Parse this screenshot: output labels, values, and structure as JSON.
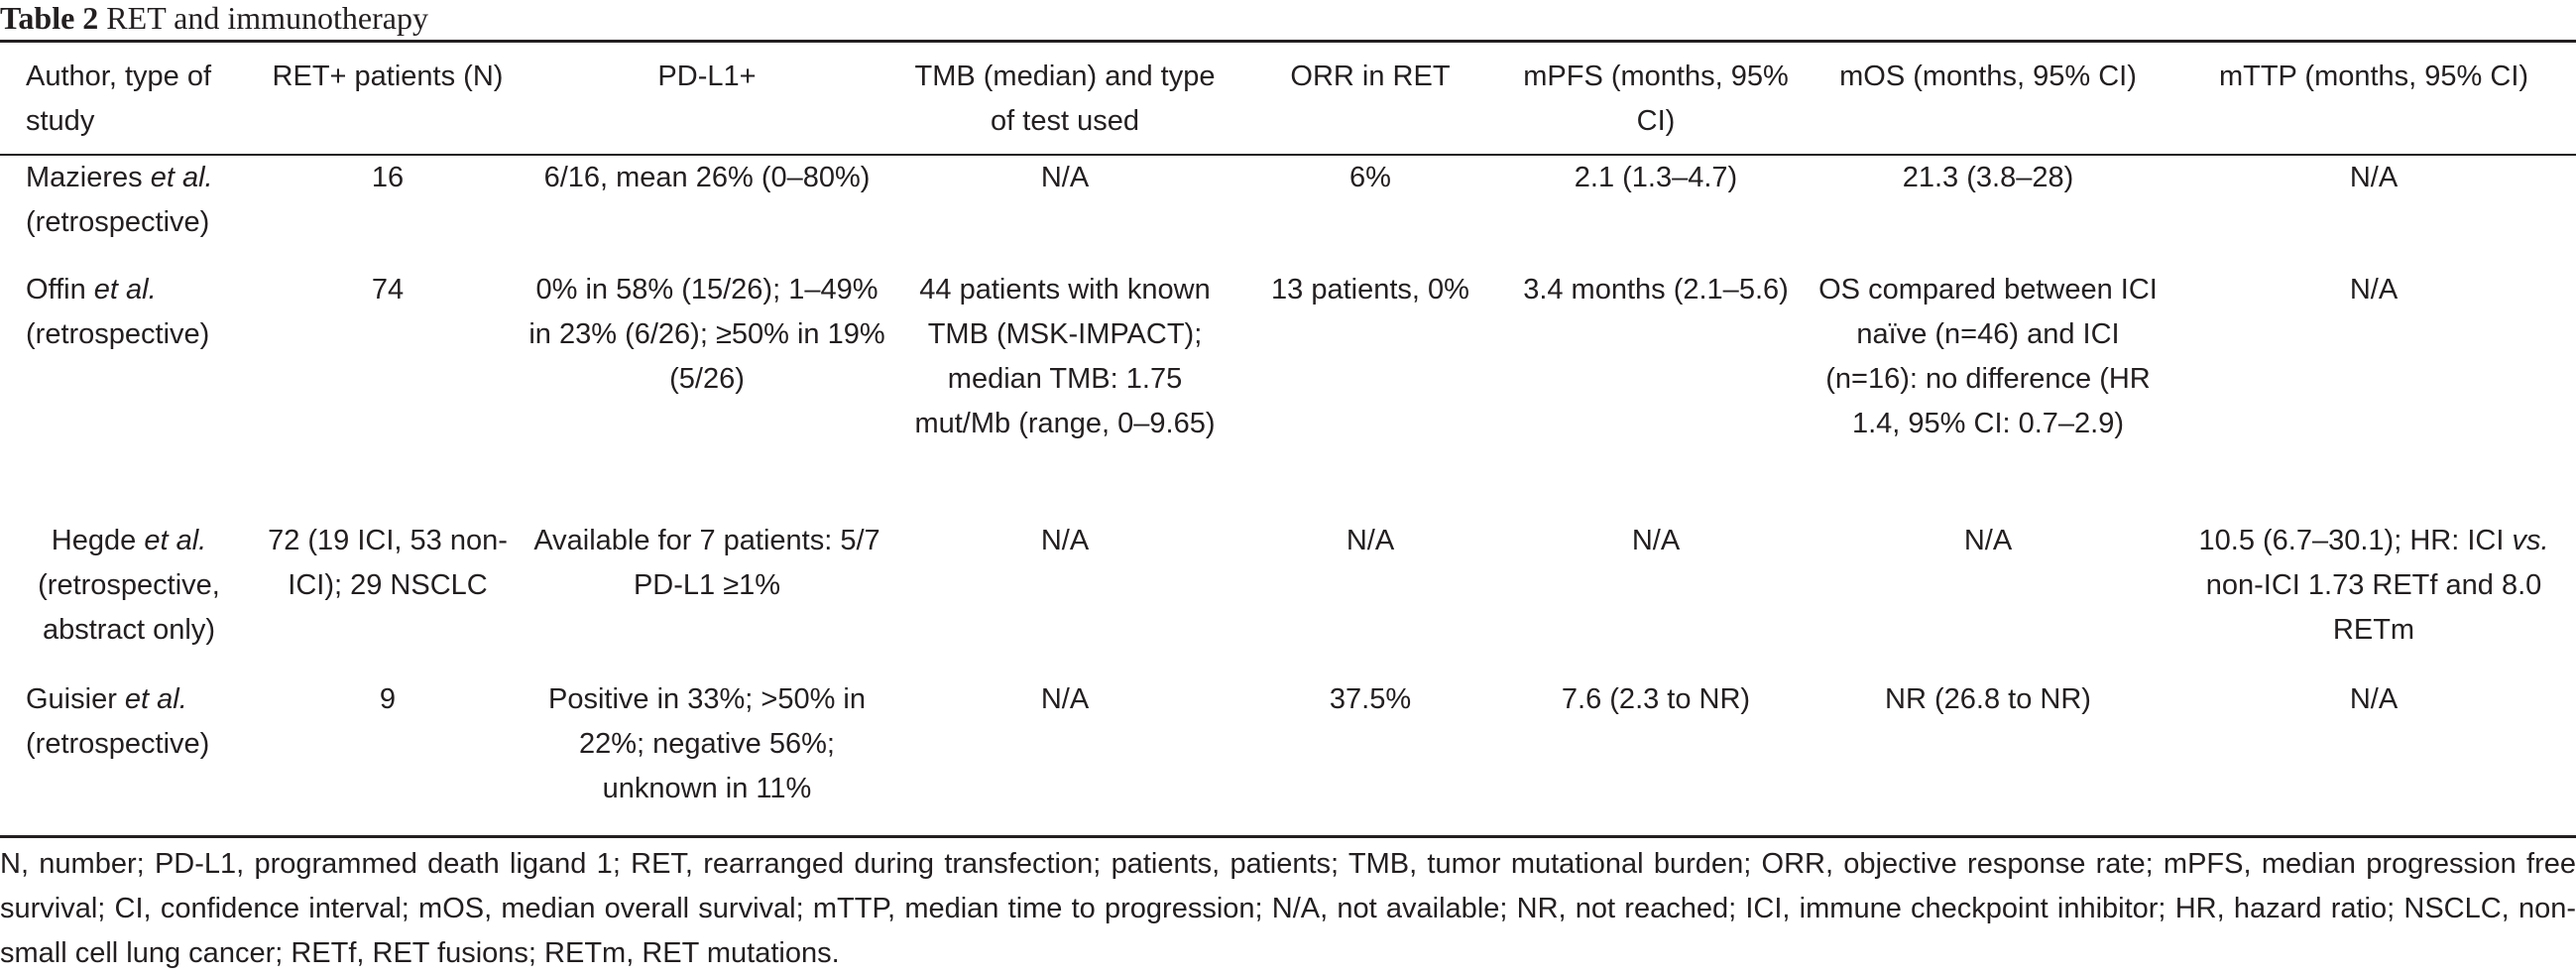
{
  "caption": {
    "label": "Table 2",
    "title": " RET and immunotherapy"
  },
  "headers": [
    "Author, type of study",
    "RET+ patients (N)",
    "PD-L1+",
    "TMB (median) and type of test used",
    "ORR in RET",
    "mPFS (months, 95% CI)",
    "mOS (months, 95% CI)",
    "mTTP (months, 95% CI)"
  ],
  "rows": [
    {
      "author": "Mazieres",
      "etal": "et al.",
      "type": "(retrospective)",
      "patients": "16",
      "pdl1": "6/16, mean 26% (0–80%)",
      "tmb": "N/A",
      "orr": "6%",
      "mpfs": "2.1 (1.3–4.7)",
      "mos": "21.3 (3.8–28)",
      "mttp": "N/A"
    },
    {
      "author": "Offin",
      "etal": "et al.",
      "type": "(retrospective)",
      "patients": "74",
      "pdl1": "0% in 58% (15/26); 1–49% in 23% (6/26); ≥50% in 19% (5/26)",
      "tmb": "44 patients with known TMB (MSK-IMPACT); median TMB: 1.75 mut/Mb (range, 0–9.65)",
      "orr": "13 patients, 0%",
      "mpfs": "3.4 months (2.1–5.6)",
      "mos": "OS compared between ICI naïve (n=46) and ICI (n=16): no difference (HR 1.4, 95% CI: 0.7–2.9)",
      "mttp": "N/A"
    },
    {
      "author": "Hegde",
      "etal": "et al.",
      "type": "(retrospective, abstract only)",
      "patients": "72 (19 ICI, 53 non-ICI); 29 NSCLC",
      "pdl1": "Available for 7 patients: 5/7 PD-L1 ≥1%",
      "tmb": "N/A",
      "orr": "N/A",
      "mpfs": "N/A",
      "mos": "N/A",
      "mttp_pre": "10.5 (6.7–30.1); HR: ICI ",
      "mttp_vs": "vs.",
      "mttp_post": " non-ICI 1.73 RETf and 8.0 RETm"
    },
    {
      "author": "Guisier",
      "etal": "et al.",
      "type": "(retrospective)",
      "patients": "9",
      "pdl1": "Positive in 33%; >50% in 22%; negative 56%; unknown in 11%",
      "tmb": "N/A",
      "orr": "37.5%",
      "mpfs": "7.6 (2.3 to NR)",
      "mos": "NR (26.8 to NR)",
      "mttp": "N/A"
    }
  ],
  "footnote": "N, number; PD-L1, programmed death ligand 1; RET, rearranged during transfection; patients, patients; TMB, tumor mutational burden; ORR, objective response rate; mPFS, median progression free survival; CI, confidence interval; mOS, median overall survival; mTTP, median time to progression; N/A, not available; NR, not reached; ICI, immune checkpoint inhibitor; HR, hazard ratio; NSCLC, non-small cell lung cancer; RETf, RET fusions; RETm, RET mutations."
}
